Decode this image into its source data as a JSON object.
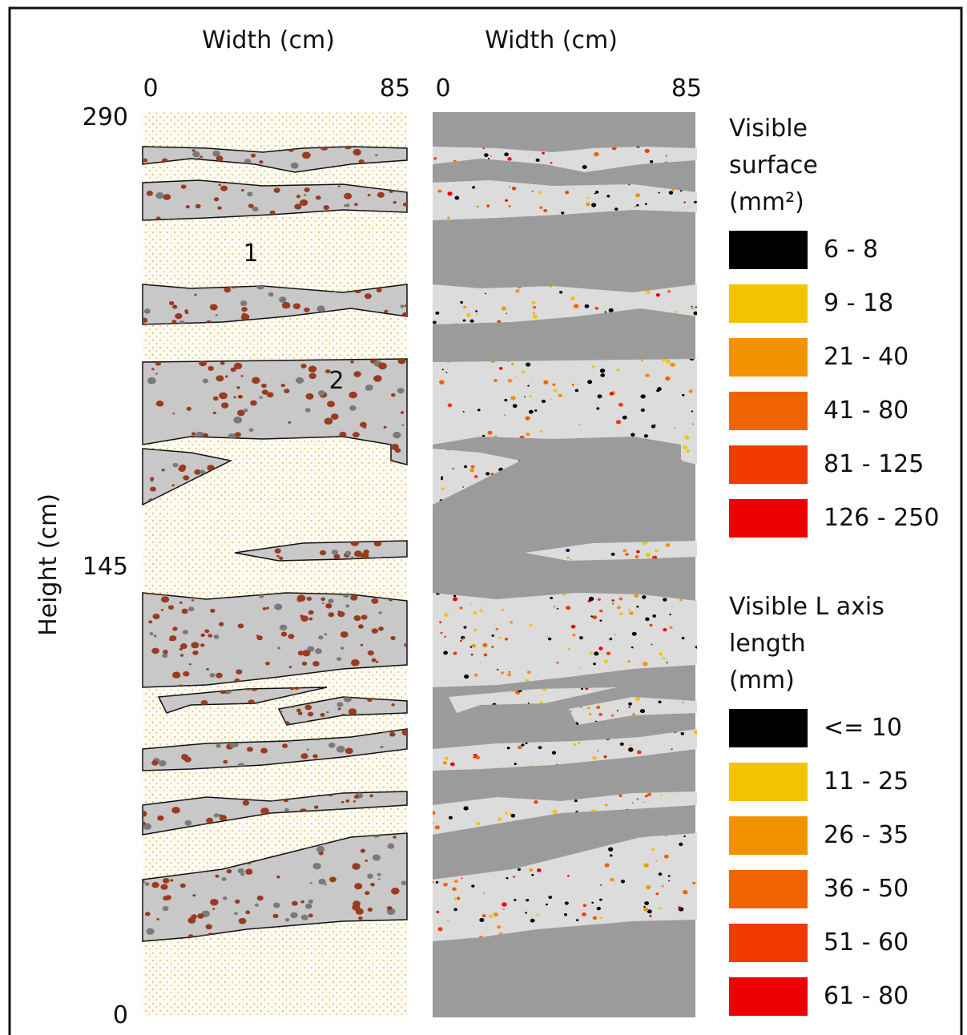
{
  "left_panel": {
    "x_axis_label": "Width (cm)",
    "x_ticks": [
      "0",
      "85"
    ],
    "layer_labels": [
      "1",
      "2"
    ]
  },
  "right_panel": {
    "x_axis_label": "Width (cm)",
    "x_ticks": [
      "0",
      "85"
    ]
  },
  "y_axis": {
    "label": "Height (cm)",
    "ticks": [
      "290",
      "145",
      "0"
    ]
  },
  "legends": [
    {
      "title_lines": [
        "Visible",
        "surface",
        "(mm²)"
      ],
      "items": [
        {
          "label": "6 - 8",
          "color": "#000000"
        },
        {
          "label": "9 - 18",
          "color": "#f5c400"
        },
        {
          "label": "21 - 40",
          "color": "#f39200"
        },
        {
          "label": "41 - 80",
          "color": "#f06400"
        },
        {
          "label": "81 - 125",
          "color": "#f03a00"
        },
        {
          "label": "126 - 250",
          "color": "#ee0000"
        }
      ]
    },
    {
      "title_lines": [
        "Visible L axis",
        "length",
        "(mm)"
      ],
      "items": [
        {
          "label": "<= 10",
          "color": "#000000"
        },
        {
          "label": "11 - 25",
          "color": "#f5c400"
        },
        {
          "label": "26 - 35",
          "color": "#f39200"
        },
        {
          "label": "36 - 50",
          "color": "#f06400"
        },
        {
          "label": "51 - 60",
          "color": "#f03a00"
        },
        {
          "label": "61 - 80",
          "color": "#ee0000"
        }
      ]
    }
  ]
}
